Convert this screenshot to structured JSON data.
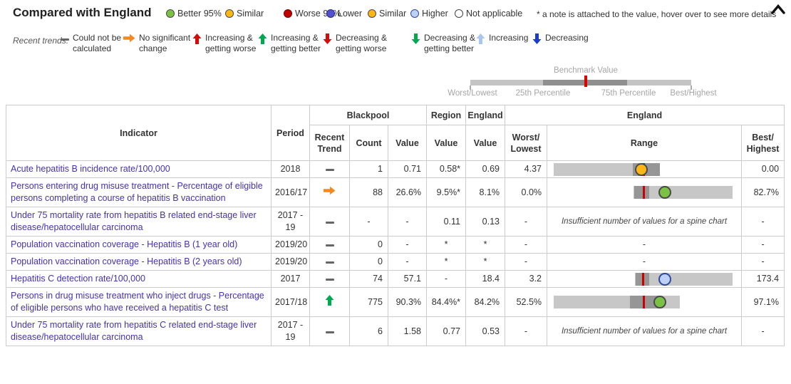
{
  "header": {
    "title": "Compared with England",
    "significance": [
      {
        "label": "Better 95%",
        "fill": "#7bc143",
        "stroke": "#4a4a4a"
      },
      {
        "label": "Similar",
        "fill": "#fdb714",
        "stroke": "#4a4a4a"
      },
      {
        "label": "Worse 95%",
        "fill": "#c00000",
        "stroke": "#7a0000"
      },
      {
        "label": "Lower",
        "fill": "#5152ce",
        "stroke": "#2a2a90"
      },
      {
        "label": "Similar",
        "fill": "#fdb714",
        "stroke": "#4a4a4a"
      },
      {
        "label": "Higher",
        "fill": "#bdd0f5",
        "stroke": "#2d4b9e"
      },
      {
        "label": "Not applicable",
        "fill": "#ffffff",
        "stroke": "#444444"
      }
    ],
    "note": "* a note is attached to the value, hover over to see more details"
  },
  "trends": {
    "label": "Recent trends:",
    "items": [
      {
        "icon": "dash",
        "color": "#666666",
        "label": "Could not be calculated"
      },
      {
        "icon": "right",
        "color": "#f5891f",
        "label": "No significant change"
      },
      {
        "icon": "up",
        "color": "#d40b0b",
        "label": "Increasing & getting worse"
      },
      {
        "icon": "up",
        "color": "#00a94f",
        "label": "Increasing & getting better"
      },
      {
        "icon": "down",
        "color": "#d40b0b",
        "label": "Decreasing & getting worse"
      },
      {
        "icon": "down",
        "color": "#00a94f",
        "label": "Decreasing & getting better"
      },
      {
        "icon": "up",
        "color": "#a8c6f0",
        "label": "Increasing"
      },
      {
        "icon": "down",
        "color": "#1b3bcb",
        "label": "Decreasing"
      }
    ]
  },
  "benchmark": {
    "title": "Benchmark Value",
    "labels": [
      "Worst/Lowest",
      "25th Percentile",
      "75th Percentile",
      "Best/Highest"
    ]
  },
  "table": {
    "headers": {
      "indicator": "Indicator",
      "period": "Period",
      "blackpool": "Blackpool",
      "region": "Region",
      "england": "England",
      "england_range": "England"
    },
    "sub_headers": [
      "Recent Trend",
      "Count",
      "Value",
      "Value",
      "Value",
      "Worst/ Lowest",
      "Range",
      "Best/ Highest"
    ],
    "insufficient_text": "Insufficient number of values for a spine chart",
    "rows": [
      {
        "indicator": "Acute hepatitis B incidence rate/100,000",
        "period": "2018",
        "trend": {
          "icon": "dash",
          "color": "#666666"
        },
        "count": "1",
        "value": "0.71",
        "region_value": "0.58*",
        "england_value": "0.69",
        "worst": "4.37",
        "best": "0.00",
        "range": {
          "type": "spine",
          "bar": [
            9,
            149
          ],
          "dark": [
            120,
            38
          ],
          "red": 134,
          "marker": 132,
          "marker_fill": "#fdb714",
          "marker_stroke": "#4a4a4a"
        }
      },
      {
        "indicator": "Persons entering drug misuse treatment - Percentage of eligible persons completing a course of hepatitis B vaccination",
        "period": "2016/17",
        "trend": {
          "icon": "right",
          "color": "#f5891f"
        },
        "count": "88",
        "value": "26.6%",
        "region_value": "9.5%*",
        "england_value": "8.1%",
        "worst": "0.0%",
        "best": "82.7%",
        "range": {
          "type": "spine",
          "bar": [
            121,
            139
          ],
          "dark": [
            122,
            21
          ],
          "red": 134,
          "marker": 165,
          "marker_fill": "#7bc143",
          "marker_stroke": "#4a4a4a"
        }
      },
      {
        "indicator": "Under 75 mortality rate from hepatitis B related end-stage liver disease/hepatocellular carcinoma",
        "period": "2017 - 19",
        "trend": {
          "icon": "dash",
          "color": "#666666"
        },
        "count": "-",
        "value": "-",
        "region_value": "0.11",
        "england_value": "0.13",
        "worst": "-",
        "best": "-",
        "range": {
          "type": "insufficient"
        }
      },
      {
        "indicator": "Population vaccination coverage - Hepatitis B (1 year old)",
        "period": "2019/20",
        "trend": {
          "icon": "dash",
          "color": "#666666"
        },
        "count": "0",
        "value": "-",
        "region_value": "*",
        "england_value": "*",
        "worst": "-",
        "best": "-",
        "range": {
          "type": "text",
          "text": "-"
        }
      },
      {
        "indicator": "Population vaccination coverage - Hepatitis B (2 years old)",
        "period": "2019/20",
        "trend": {
          "icon": "dash",
          "color": "#666666"
        },
        "count": "0",
        "value": "-",
        "region_value": "*",
        "england_value": "*",
        "worst": "-",
        "best": "-",
        "range": {
          "type": "text",
          "text": "-"
        }
      },
      {
        "indicator": "Hepatitis C detection rate/100,000",
        "period": "2017",
        "trend": {
          "icon": "dash",
          "color": "#666666"
        },
        "count": "74",
        "value": "57.1",
        "region_value": "-",
        "england_value": "18.4",
        "worst": "3.2",
        "best": "173.4",
        "range": {
          "type": "spine",
          "bar": [
            123,
            137
          ],
          "dark": [
            124,
            19
          ],
          "red": 133,
          "marker": 165,
          "marker_fill": "#bdd0f5",
          "marker_stroke": "#2d4b9e"
        }
      },
      {
        "indicator": "Persons in drug misuse treatment who inject drugs - Percentage of eligible persons who have received a hepatitis C test",
        "period": "2017/18",
        "trend": {
          "icon": "up",
          "color": "#00a94f"
        },
        "count": "775",
        "value": "90.3%",
        "region_value": "84.4%*",
        "england_value": "84.2%",
        "worst": "52.5%",
        "best": "97.1%",
        "range": {
          "type": "spine",
          "bar": [
            9,
            177
          ],
          "dark": [
            116,
            41
          ],
          "red": 134,
          "marker": 158,
          "marker_fill": "#7bc143",
          "marker_stroke": "#4a4a4a"
        }
      },
      {
        "indicator": "Under 75 mortality rate from hepatitis C related end-stage liver disease/hepatocellular carcinoma",
        "period": "2017 - 19",
        "trend": {
          "icon": "dash",
          "color": "#666666"
        },
        "count": "6",
        "value": "1.58",
        "region_value": "0.77",
        "england_value": "0.53",
        "worst": "-",
        "best": "-",
        "range": {
          "type": "insufficient"
        }
      }
    ]
  }
}
